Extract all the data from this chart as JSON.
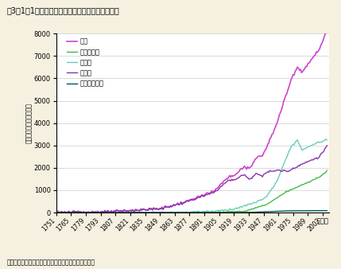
{
  "title": "図3－1－1　化石燃料からの二酸化炭素排出量推移",
  "source_note": "資料：米国エネルギー省二酸化炭素情報分析センター",
  "xlabel": "（年）",
  "ylabel": "百万トン（炭素換算量）",
  "ylim": [
    0,
    8000
  ],
  "yticks": [
    0,
    1000,
    2000,
    3000,
    4000,
    5000,
    6000,
    7000,
    8000
  ],
  "legend_labels": [
    "合計",
    "天然ガス等",
    "石油等",
    "石炭等",
    "フレアリング"
  ],
  "line_colors": [
    "#cc44cc",
    "#44bb44",
    "#66ccbb",
    "#8833aa",
    "#005555"
  ],
  "line_widths": [
    1.2,
    1.0,
    1.0,
    1.0,
    1.0
  ],
  "xtick_years": [
    1751,
    1765,
    1779,
    1793,
    1807,
    1821,
    1835,
    1849,
    1863,
    1877,
    1891,
    1905,
    1919,
    1933,
    1947,
    1961,
    1975,
    1989,
    2003
  ],
  "bg_color": "#f5f0e0",
  "plot_bg_color": "#ffffff",
  "start_year": 1751,
  "end_year": 2007
}
